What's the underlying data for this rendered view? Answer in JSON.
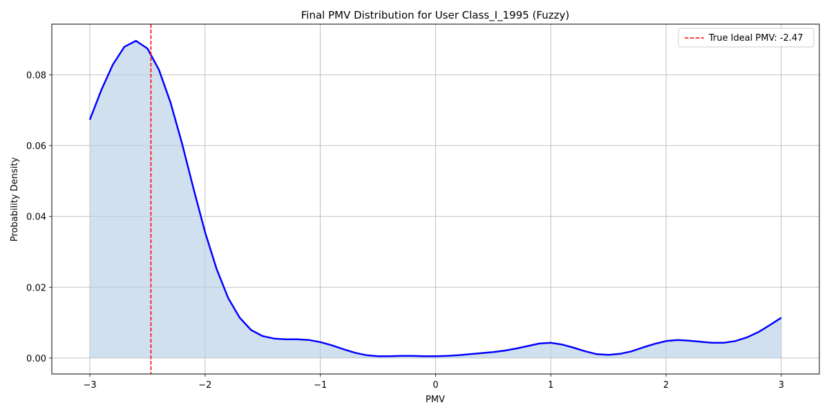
{
  "chart_data": {
    "type": "area",
    "title": "Final PMV Distribution for User Class_I_1995 (Fuzzy)",
    "xlabel": "PMV",
    "ylabel": "Probability Density",
    "xlim": [
      -3.33,
      3.33
    ],
    "ylim": [
      -0.0045,
      0.0943
    ],
    "xticks": [
      -3,
      -2,
      -1,
      0,
      1,
      2,
      3
    ],
    "xtick_labels": [
      "−3",
      "−2",
      "−1",
      "0",
      "1",
      "2",
      "3"
    ],
    "yticks": [
      0.0,
      0.02,
      0.04,
      0.06,
      0.08
    ],
    "ytick_labels": [
      "0.00",
      "0.02",
      "0.04",
      "0.06",
      "0.08"
    ],
    "grid": true,
    "legend_position": "top-right",
    "series": [
      {
        "color": "#0000ff",
        "fill_color": "#b7d0e5",
        "x": [
          -3.0,
          -2.9,
          -2.8,
          -2.7,
          -2.6,
          -2.5,
          -2.4,
          -2.3,
          -2.2,
          -2.1,
          -2.0,
          -1.9,
          -1.8,
          -1.7,
          -1.6,
          -1.5,
          -1.4,
          -1.3,
          -1.2,
          -1.1,
          -1.0,
          -0.9,
          -0.8,
          -0.7,
          -0.6,
          -0.5,
          -0.4,
          -0.3,
          -0.2,
          -0.1,
          0.0,
          0.1,
          0.2,
          0.3,
          0.4,
          0.5,
          0.6,
          0.7,
          0.8,
          0.9,
          1.0,
          1.1,
          1.2,
          1.3,
          1.4,
          1.5,
          1.6,
          1.7,
          1.8,
          1.9,
          2.0,
          2.1,
          2.2,
          2.3,
          2.4,
          2.5,
          2.6,
          2.7,
          2.8,
          2.9,
          3.0
        ],
        "y": [
          0.0673,
          0.0757,
          0.0829,
          0.0879,
          0.0896,
          0.0874,
          0.0814,
          0.0722,
          0.0606,
          0.0478,
          0.0355,
          0.0252,
          0.017,
          0.0114,
          0.0079,
          0.0062,
          0.0055,
          0.0053,
          0.0053,
          0.0051,
          0.0045,
          0.0036,
          0.0025,
          0.0015,
          0.0008,
          0.0005,
          0.0005,
          0.0006,
          0.0006,
          0.0005,
          0.0005,
          0.0006,
          0.0008,
          0.0011,
          0.0014,
          0.0017,
          0.0021,
          0.0027,
          0.0034,
          0.0041,
          0.0043,
          0.0038,
          0.0029,
          0.0019,
          0.0011,
          0.0009,
          0.0012,
          0.0019,
          0.003,
          0.004,
          0.0048,
          0.0051,
          0.0049,
          0.0046,
          0.0043,
          0.0043,
          0.0048,
          0.0058,
          0.0073,
          0.0093,
          0.0114
        ]
      }
    ],
    "reference_line": {
      "x": -2.47,
      "color": "#ff0000",
      "label": "True Ideal PMV: -2.47"
    }
  }
}
